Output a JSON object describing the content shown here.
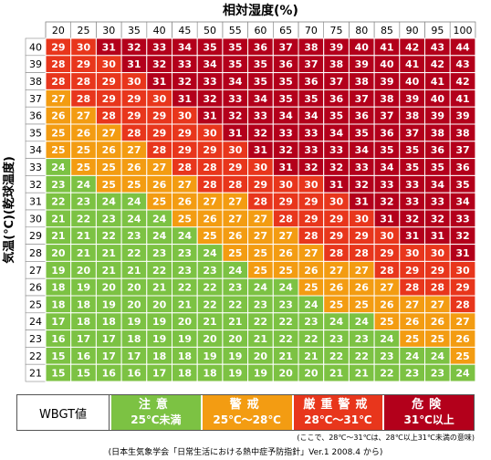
{
  "chart_data": {
    "type": "heatmap",
    "title": "",
    "xlabel": "相対湿度(%)",
    "ylabel": "気温(℃)(乾球温度)",
    "x": [
      20,
      25,
      30,
      35,
      40,
      45,
      50,
      55,
      60,
      65,
      70,
      75,
      80,
      85,
      90,
      95,
      100
    ],
    "y": [
      40,
      39,
      38,
      37,
      36,
      35,
      34,
      33,
      32,
      31,
      30,
      29,
      28,
      27,
      26,
      25,
      24,
      23,
      22,
      21
    ],
    "values": [
      [
        29,
        30,
        31,
        32,
        33,
        34,
        35,
        35,
        36,
        37,
        38,
        39,
        40,
        41,
        42,
        43,
        44
      ],
      [
        28,
        29,
        30,
        31,
        32,
        33,
        34,
        35,
        35,
        36,
        37,
        38,
        39,
        40,
        41,
        42,
        43
      ],
      [
        28,
        28,
        29,
        30,
        31,
        32,
        33,
        34,
        35,
        35,
        36,
        37,
        38,
        39,
        40,
        41,
        42
      ],
      [
        27,
        28,
        29,
        29,
        30,
        31,
        32,
        33,
        34,
        35,
        35,
        36,
        37,
        38,
        39,
        40,
        41
      ],
      [
        26,
        27,
        28,
        29,
        29,
        30,
        31,
        32,
        33,
        34,
        34,
        35,
        36,
        37,
        38,
        39,
        39
      ],
      [
        25,
        26,
        27,
        28,
        29,
        29,
        30,
        31,
        32,
        33,
        33,
        34,
        35,
        36,
        37,
        38,
        38
      ],
      [
        25,
        25,
        26,
        27,
        28,
        29,
        29,
        30,
        31,
        32,
        33,
        33,
        34,
        35,
        35,
        36,
        37
      ],
      [
        24,
        25,
        25,
        26,
        27,
        28,
        28,
        29,
        30,
        31,
        32,
        32,
        33,
        34,
        35,
        35,
        36
      ],
      [
        23,
        24,
        25,
        25,
        26,
        27,
        28,
        28,
        29,
        30,
        30,
        31,
        32,
        33,
        33,
        34,
        35
      ],
      [
        22,
        23,
        24,
        24,
        25,
        26,
        27,
        27,
        28,
        29,
        29,
        30,
        31,
        32,
        33,
        33,
        34
      ],
      [
        21,
        22,
        23,
        24,
        24,
        25,
        26,
        27,
        27,
        28,
        29,
        29,
        30,
        31,
        32,
        32,
        33
      ],
      [
        21,
        21,
        22,
        23,
        24,
        24,
        25,
        26,
        27,
        27,
        28,
        29,
        29,
        30,
        31,
        31,
        32
      ],
      [
        20,
        21,
        21,
        22,
        23,
        23,
        24,
        25,
        25,
        26,
        27,
        28,
        28,
        29,
        30,
        30,
        31
      ],
      [
        19,
        20,
        21,
        21,
        22,
        23,
        23,
        24,
        25,
        25,
        26,
        27,
        27,
        28,
        29,
        29,
        30
      ],
      [
        18,
        19,
        20,
        20,
        21,
        22,
        22,
        23,
        24,
        24,
        25,
        26,
        26,
        27,
        28,
        28,
        29
      ],
      [
        18,
        18,
        19,
        20,
        20,
        21,
        22,
        22,
        23,
        23,
        24,
        25,
        25,
        26,
        27,
        27,
        28
      ],
      [
        17,
        18,
        18,
        19,
        19,
        20,
        21,
        21,
        22,
        22,
        23,
        24,
        24,
        25,
        26,
        26,
        27
      ],
      [
        16,
        17,
        17,
        18,
        19,
        19,
        20,
        20,
        21,
        22,
        22,
        23,
        23,
        24,
        25,
        25,
        26
      ],
      [
        15,
        16,
        17,
        17,
        18,
        18,
        19,
        19,
        20,
        21,
        21,
        22,
        22,
        23,
        24,
        24,
        25
      ],
      [
        15,
        15,
        16,
        16,
        17,
        18,
        18,
        19,
        19,
        20,
        20,
        21,
        21,
        22,
        23,
        23,
        24
      ]
    ],
    "color_scale": [
      {
        "min": 0,
        "max": 24,
        "color": "#7cc243"
      },
      {
        "min": 25,
        "max": 27,
        "color": "#f39c12"
      },
      {
        "min": 28,
        "max": 30,
        "color": "#e8361c"
      },
      {
        "min": 31,
        "max": 99,
        "color": "#b3001b"
      }
    ],
    "grid": true
  },
  "legend": {
    "label": "WBGT値",
    "items": [
      {
        "level": "注意",
        "range": "25℃未満",
        "color": "#7cc243"
      },
      {
        "level": "警戒",
        "range": "25℃～28℃",
        "color": "#f39c12"
      },
      {
        "level": "厳重警戒",
        "range": "28℃～31℃",
        "color": "#e8361c"
      },
      {
        "level": "危険",
        "range": "31℃以上",
        "color": "#b3001b"
      }
    ]
  },
  "note": "(ここで、28℃～31℃は、28℃以上31℃未満の意味)",
  "source": "(日本生気象学会「日常生活における熱中症予防指針」Ver.1 2008.4 から)"
}
